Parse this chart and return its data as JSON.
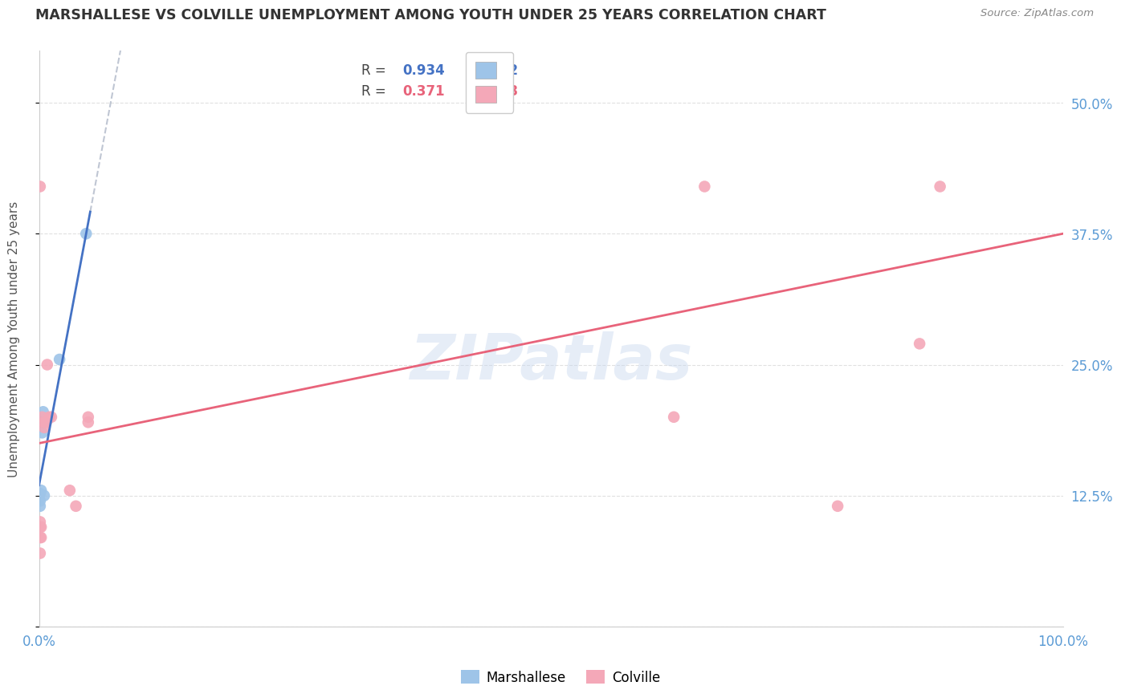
{
  "title": "MARSHALLESE VS COLVILLE UNEMPLOYMENT AMONG YOUTH UNDER 25 YEARS CORRELATION CHART",
  "source": "Source: ZipAtlas.com",
  "ylabel": "Unemployment Among Youth under 25 years",
  "title_color": "#333333",
  "source_color": "#888888",
  "ylabel_color": "#555555",
  "axis_label_color": "#5b9bd5",
  "right_ytick_color": "#5b9bd5",
  "right_yticks": [
    0.0,
    0.125,
    0.25,
    0.375,
    0.5
  ],
  "right_ytick_labels": [
    "",
    "12.5%",
    "25.0%",
    "37.5%",
    "50.0%"
  ],
  "watermark": "ZIPatlas",
  "legend_blue_r_val": "0.934",
  "legend_blue_n_val": "12",
  "legend_pink_r_val": "0.371",
  "legend_pink_n_val": "23",
  "legend_label_marshallese": "Marshallese",
  "legend_label_colville": "Colville",
  "marshallese_x": [
    0.001,
    0.001,
    0.001,
    0.002,
    0.002,
    0.003,
    0.003,
    0.004,
    0.004,
    0.005,
    0.02,
    0.046
  ],
  "marshallese_y": [
    0.115,
    0.12,
    0.127,
    0.13,
    0.195,
    0.185,
    0.195,
    0.195,
    0.205,
    0.125,
    0.255,
    0.375
  ],
  "colville_x": [
    0.001,
    0.001,
    0.001,
    0.001,
    0.001,
    0.002,
    0.002,
    0.003,
    0.005,
    0.005,
    0.007,
    0.008,
    0.01,
    0.012,
    0.03,
    0.036,
    0.048,
    0.048,
    0.62,
    0.65,
    0.78,
    0.86,
    0.88
  ],
  "colville_y": [
    0.07,
    0.085,
    0.095,
    0.1,
    0.42,
    0.085,
    0.095,
    0.2,
    0.19,
    0.195,
    0.195,
    0.25,
    0.2,
    0.2,
    0.13,
    0.115,
    0.195,
    0.2,
    0.2,
    0.42,
    0.115,
    0.27,
    0.42
  ],
  "marker_size": 110,
  "blue_color": "#9ec4e8",
  "pink_color": "#f4a8b8",
  "blue_line_color": "#4472c4",
  "pink_line_color": "#e8637a",
  "dashed_line_color": "#b0b8c8",
  "ylim": [
    0.0,
    0.55
  ],
  "xlim": [
    0.0,
    1.0
  ],
  "grid_color": "#cccccc",
  "background_color": "#ffffff"
}
